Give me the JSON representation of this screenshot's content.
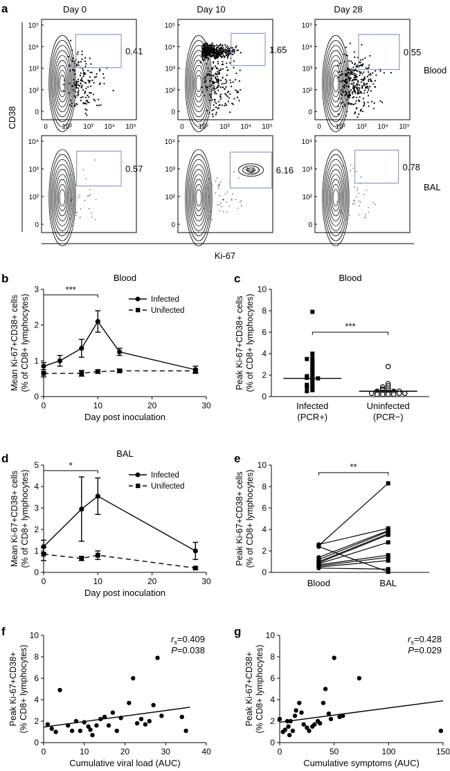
{
  "panel_labels": {
    "a": "a",
    "b": "b",
    "c": "c",
    "d": "d",
    "e": "e",
    "f": "f",
    "g": "g"
  },
  "flow": {
    "days": [
      "Day 0",
      "Day 10",
      "Day 28"
    ],
    "rows": [
      "Blood",
      "BAL"
    ],
    "y_axis_label": "CD38",
    "x_axis_label": "Ki-67",
    "y_ticks_blood": [
      "10⁵",
      "10⁴",
      "10³",
      "10²",
      "0"
    ],
    "y_ticks_bal": [
      "10⁴",
      "10³",
      "10²",
      "0"
    ],
    "x_ticks": [
      "0",
      "10²",
      "10³",
      "10⁴",
      "10⁵"
    ],
    "gate_values": {
      "blood": [
        "0.41",
        "1.65",
        "0.55"
      ],
      "bal": [
        "0.57",
        "6.16",
        "0.78"
      ]
    }
  },
  "colors": {
    "gate": "#8d9ac8",
    "ink": "#000000",
    "bal_dots": "#555555"
  },
  "chart_data": [
    {
      "id": "b",
      "type": "line",
      "title": "Blood",
      "xlabel": "Day post inoculation",
      "ylabel_lines": [
        "Mean Ki-67+CD38+ cells",
        "(% of CD8+ lymphocytes)"
      ],
      "xlim": [
        0,
        30
      ],
      "ylim": [
        0,
        3
      ],
      "xticks": [
        "0",
        "10",
        "20",
        "30"
      ],
      "yticks": [
        "0",
        "1",
        "2",
        "3"
      ],
      "series": [
        {
          "name": "Infected",
          "x": [
            0,
            3,
            7,
            10,
            14,
            28
          ],
          "y": [
            0.85,
            1.0,
            1.35,
            2.1,
            1.25,
            0.75
          ],
          "err": [
            0.1,
            0.15,
            0.25,
            0.3,
            0.1,
            0.1
          ]
        },
        {
          "name": "Unifected",
          "x": [
            0,
            7,
            10,
            14,
            28
          ],
          "y": [
            0.65,
            0.65,
            0.7,
            0.72,
            0.72
          ],
          "err": [
            0.1,
            0.08,
            0.05,
            0.05,
            0.05
          ]
        }
      ],
      "legend": "top-right",
      "significance": "***"
    },
    {
      "id": "c",
      "type": "scatter",
      "title": "Blood",
      "ylabel_lines": [
        "Peak Ki-67+CD38+ cells",
        "(% of CD8+ lymphocytes)"
      ],
      "ylim": [
        0,
        10
      ],
      "yticks": [
        "0",
        "2",
        "4",
        "6",
        "8",
        "10"
      ],
      "categories": [
        {
          "line1": "Infected",
          "line2": "(PCR+)"
        },
        {
          "line1": "Uninfected",
          "line2": "(PCR−)"
        }
      ],
      "groups": [
        {
          "median": 1.7,
          "values": [
            7.9,
            4.0,
            3.6,
            3.5,
            3.3,
            3.1,
            2.9,
            2.7,
            2.5,
            2.4,
            2.2,
            2.0,
            1.9,
            1.8,
            1.75,
            1.7,
            1.5,
            1.4,
            1.2,
            1.1,
            1.0,
            0.9,
            0.8,
            0.6,
            0.5
          ]
        },
        {
          "median": 0.5,
          "values": [
            2.8,
            1.2,
            1.0,
            0.9,
            0.8,
            0.7,
            0.6,
            0.6,
            0.5,
            0.5,
            0.5,
            0.4,
            0.4,
            0.4,
            0.4,
            0.3,
            0.3,
            0.3,
            0.2,
            0.2,
            0.2,
            0.2
          ]
        }
      ],
      "significance": "***"
    },
    {
      "id": "d",
      "type": "line",
      "title": "BAL",
      "xlabel": "Day post inoculation",
      "ylabel_lines": [
        "Mean Ki-67+CD38+ cells",
        "(% of CD8+ lymphocytes)"
      ],
      "xlim": [
        0,
        30
      ],
      "ylim": [
        0,
        5
      ],
      "xticks": [
        "0",
        "10",
        "20",
        "30"
      ],
      "yticks": [
        "0",
        "1",
        "2",
        "3",
        "4",
        "5"
      ],
      "series": [
        {
          "name": "Infected",
          "x": [
            0,
            7,
            10,
            28
          ],
          "y": [
            1.2,
            2.95,
            3.55,
            1.0
          ],
          "err": [
            0.3,
            1.5,
            0.85,
            0.4
          ]
        },
        {
          "name": "Unifected",
          "x": [
            0,
            7,
            10,
            28
          ],
          "y": [
            0.85,
            0.65,
            0.8,
            0.2
          ],
          "err": [
            0.3,
            0.1,
            0.2,
            0.05
          ]
        }
      ],
      "legend": "top-right",
      "significance": "*"
    },
    {
      "id": "e",
      "type": "paired",
      "ylabel_lines": [
        "Peak Ki-67+CD38+ cells",
        "(% of CD8+ lymphocytes)"
      ],
      "ylim": [
        0,
        10
      ],
      "yticks": [
        "0",
        "2",
        "4",
        "6",
        "8",
        "10"
      ],
      "categories": [
        "Blood",
        "BAL"
      ],
      "pairs": [
        [
          2.5,
          8.3
        ],
        [
          2.6,
          4.1
        ],
        [
          1.4,
          3.9
        ],
        [
          1.2,
          3.8
        ],
        [
          1.0,
          3.6
        ],
        [
          0.9,
          3.5
        ],
        [
          0.8,
          2.8
        ],
        [
          0.7,
          1.6
        ],
        [
          0.6,
          1.4
        ],
        [
          0.5,
          1.1
        ],
        [
          0.4,
          0.3
        ],
        [
          2.4,
          0.05
        ]
      ],
      "significance": "**"
    },
    {
      "id": "f",
      "type": "scatter",
      "xlabel": "Cumulative viral load (AUC)",
      "ylabel_lines": [
        "Peak Ki-67+CD38+",
        "(% CD8+ lymphocytes)"
      ],
      "xlim": [
        0,
        40
      ],
      "ylim": [
        0,
        10
      ],
      "xticks": [
        "0",
        "10",
        "20",
        "30",
        "40"
      ],
      "yticks": [
        "0",
        "2",
        "4",
        "6",
        "8",
        "10"
      ],
      "points": [
        [
          1,
          1.7
        ],
        [
          2,
          1.3
        ],
        [
          3,
          1.0
        ],
        [
          4,
          4.9
        ],
        [
          6,
          1.6
        ],
        [
          7,
          1.1
        ],
        [
          8,
          2.0
        ],
        [
          9,
          1.1
        ],
        [
          10,
          1.9
        ],
        [
          11,
          1.5
        ],
        [
          11.5,
          1.2
        ],
        [
          12,
          0.7
        ],
        [
          13,
          1.6
        ],
        [
          14,
          2.2
        ],
        [
          15,
          2.4
        ],
        [
          16,
          1.6
        ],
        [
          17,
          2.8
        ],
        [
          18,
          1.1
        ],
        [
          19,
          2.3
        ],
        [
          21,
          3.7
        ],
        [
          22,
          6.0
        ],
        [
          23,
          1.8
        ],
        [
          24,
          2.2
        ],
        [
          25,
          1.7
        ],
        [
          26,
          2.0
        ],
        [
          27,
          3.5
        ],
        [
          28,
          7.9
        ],
        [
          29,
          2.5
        ],
        [
          34,
          2.4
        ],
        [
          35,
          1.1
        ]
      ],
      "fit": [
        [
          0,
          1.45
        ],
        [
          36,
          3.3
        ]
      ],
      "stats": {
        "rs_label": "r",
        "rs_sub": "s",
        "rs_value": "=0.409",
        "p_label": "P",
        "p_value": "=0.038"
      }
    },
    {
      "id": "g",
      "type": "scatter",
      "xlabel": "Cumulative symptoms (AUC)",
      "ylabel_lines": [
        "Peak Ki-67+CD38+",
        "(% CD8+ lymphocytes)"
      ],
      "xlim": [
        0,
        150
      ],
      "ylim": [
        0,
        10
      ],
      "xticks": [
        "0",
        "50",
        "100",
        "150"
      ],
      "yticks": [
        "0",
        "2",
        "4",
        "6",
        "8",
        "10"
      ],
      "points": [
        [
          0,
          2.2
        ],
        [
          3,
          1.0
        ],
        [
          5,
          1.2
        ],
        [
          7,
          2.0
        ],
        [
          8,
          1.5
        ],
        [
          9,
          0.7
        ],
        [
          10,
          2.0
        ],
        [
          12,
          1.1
        ],
        [
          14,
          2.5
        ],
        [
          15,
          3.0
        ],
        [
          18,
          3.7
        ],
        [
          20,
          2.8
        ],
        [
          22,
          1.7
        ],
        [
          25,
          1.4
        ],
        [
          27,
          1.1
        ],
        [
          30,
          1.5
        ],
        [
          32,
          1.7
        ],
        [
          35,
          2.0
        ],
        [
          37,
          1.8
        ],
        [
          40,
          3.7
        ],
        [
          42,
          5.0
        ],
        [
          45,
          2.7
        ],
        [
          47,
          2.2
        ],
        [
          50,
          7.9
        ],
        [
          55,
          2.4
        ],
        [
          58,
          2.5
        ],
        [
          73,
          6.0
        ],
        [
          148,
          1.1
        ]
      ],
      "fit": [
        [
          0,
          1.9
        ],
        [
          150,
          3.9
        ]
      ],
      "stats": {
        "rs_label": "r",
        "rs_sub": "s",
        "rs_value": "=0.428",
        "p_label": "P",
        "p_value": "=0.029"
      }
    }
  ]
}
